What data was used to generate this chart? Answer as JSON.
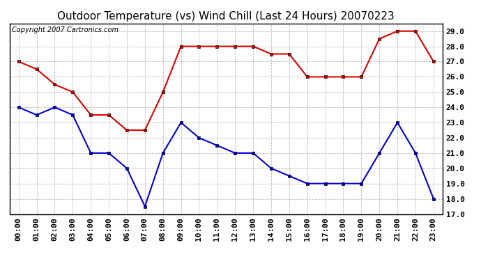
{
  "title": "Outdoor Temperature (vs) Wind Chill (Last 24 Hours) 20070223",
  "copyright": "Copyright 2007 Cartronics.com",
  "x_labels": [
    "00:00",
    "01:00",
    "02:00",
    "03:00",
    "04:00",
    "05:00",
    "06:00",
    "07:00",
    "08:00",
    "09:00",
    "10:00",
    "11:00",
    "12:00",
    "13:00",
    "14:00",
    "15:00",
    "16:00",
    "17:00",
    "18:00",
    "19:00",
    "20:00",
    "21:00",
    "22:00",
    "23:00"
  ],
  "red_y": [
    27.0,
    26.5,
    25.5,
    25.0,
    23.5,
    23.5,
    22.5,
    22.5,
    25.0,
    28.0,
    28.0,
    28.0,
    28.0,
    28.0,
    27.5,
    27.5,
    26.0,
    26.0,
    26.0,
    26.0,
    28.5,
    29.0,
    29.0,
    27.0
  ],
  "blue_y": [
    24.0,
    23.5,
    24.0,
    23.5,
    21.0,
    21.0,
    20.0,
    17.5,
    21.0,
    23.0,
    22.0,
    21.5,
    21.0,
    21.0,
    20.0,
    19.5,
    19.0,
    19.0,
    19.0,
    19.0,
    21.0,
    23.0,
    21.0,
    18.0
  ],
  "ylim": [
    17.0,
    29.5
  ],
  "yticks": [
    17.0,
    18.0,
    19.0,
    20.0,
    21.0,
    22.0,
    23.0,
    24.0,
    25.0,
    26.0,
    27.0,
    28.0,
    29.0
  ],
  "red_color": "#dd0000",
  "blue_color": "#0000dd",
  "bg_color": "#ffffff",
  "plot_bg": "#ffffff",
  "grid_color": "#bbbbbb",
  "title_fontsize": 11,
  "copyright_fontsize": 7,
  "tick_fontsize": 8,
  "marker": "s",
  "markersize": 3.5,
  "linewidth": 1.5
}
